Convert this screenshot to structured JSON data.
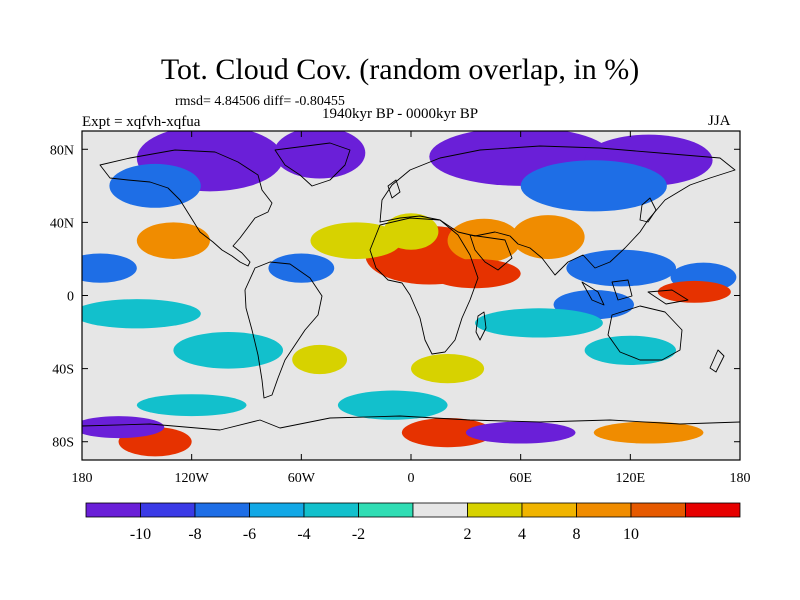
{
  "title": "Tot. Cloud Cov. (random overlap, in %)",
  "stats_line": "rmsd= 4.84506 diff= -0.80455",
  "period_line": "1940kyr BP - 0000kyr BP",
  "expt_label": "Expt = xqfvh-xqfua",
  "season_label": "JJA",
  "map": {
    "projection": "cylindrical equidistant",
    "lon_range": [
      -180,
      180
    ],
    "lat_range": [
      -90,
      90
    ],
    "x_ticks": [
      {
        "value": -180,
        "label": "180"
      },
      {
        "value": -120,
        "label": "120W"
      },
      {
        "value": -60,
        "label": "60W"
      },
      {
        "value": 0,
        "label": "0"
      },
      {
        "value": 60,
        "label": "60E"
      },
      {
        "value": 120,
        "label": "120E"
      },
      {
        "value": 180,
        "label": "180"
      }
    ],
    "y_ticks": [
      {
        "value": 80,
        "label": "80N"
      },
      {
        "value": 40,
        "label": "40N"
      },
      {
        "value": 0,
        "label": "0"
      },
      {
        "value": -40,
        "label": "40S"
      },
      {
        "value": -80,
        "label": "80S"
      }
    ],
    "background_color": "#e6e6e6",
    "anomalies": [
      {
        "lon": -110,
        "lat": 75,
        "rx": 40,
        "ry": 9,
        "color": "#6a1fd8"
      },
      {
        "lon": -50,
        "lat": 78,
        "rx": 25,
        "ry": 7,
        "color": "#6a1fd8"
      },
      {
        "lon": 60,
        "lat": 76,
        "rx": 50,
        "ry": 8,
        "color": "#6a1fd8"
      },
      {
        "lon": 130,
        "lat": 74,
        "rx": 35,
        "ry": 7,
        "color": "#6a1fd8"
      },
      {
        "lon": -140,
        "lat": 60,
        "rx": 25,
        "ry": 6,
        "color": "#1e6ee6"
      },
      {
        "lon": 100,
        "lat": 60,
        "rx": 40,
        "ry": 7,
        "color": "#1e6ee6"
      },
      {
        "lon": -170,
        "lat": 15,
        "rx": 20,
        "ry": 4,
        "color": "#1e6ee6"
      },
      {
        "lon": -60,
        "lat": 15,
        "rx": 18,
        "ry": 4,
        "color": "#1e6ee6"
      },
      {
        "lon": 115,
        "lat": 15,
        "rx": 30,
        "ry": 5,
        "color": "#1e6ee6"
      },
      {
        "lon": 160,
        "lat": 10,
        "rx": 18,
        "ry": 4,
        "color": "#1e6ee6"
      },
      {
        "lon": 100,
        "lat": -5,
        "rx": 22,
        "ry": 4,
        "color": "#1e6ee6"
      },
      {
        "lon": -150,
        "lat": -10,
        "rx": 35,
        "ry": 4,
        "color": "#12c0cc"
      },
      {
        "lon": -100,
        "lat": -30,
        "rx": 30,
        "ry": 5,
        "color": "#12c0cc"
      },
      {
        "lon": 70,
        "lat": -15,
        "rx": 35,
        "ry": 4,
        "color": "#12c0cc"
      },
      {
        "lon": 120,
        "lat": -30,
        "rx": 25,
        "ry": 4,
        "color": "#12c0cc"
      },
      {
        "lon": 10,
        "lat": 22,
        "rx": 35,
        "ry": 8,
        "color": "#e63200"
      },
      {
        "lon": 40,
        "lat": 30,
        "rx": 20,
        "ry": 6,
        "color": "#f08c00"
      },
      {
        "lon": 75,
        "lat": 32,
        "rx": 20,
        "ry": 6,
        "color": "#f08c00"
      },
      {
        "lon": 35,
        "lat": 12,
        "rx": 25,
        "ry": 4,
        "color": "#e63200"
      },
      {
        "lon": 0,
        "lat": 35,
        "rx": 15,
        "ry": 5,
        "color": "#d7d200"
      },
      {
        "lon": -30,
        "lat": 30,
        "rx": 25,
        "ry": 5,
        "color": "#d7d200"
      },
      {
        "lon": 155,
        "lat": 2,
        "rx": 20,
        "ry": 3,
        "color": "#e63200"
      },
      {
        "lon": -130,
        "lat": 30,
        "rx": 20,
        "ry": 5,
        "color": "#f08c00"
      },
      {
        "lon": -140,
        "lat": -80,
        "rx": 20,
        "ry": 4,
        "color": "#e63200"
      },
      {
        "lon": 20,
        "lat": -75,
        "rx": 25,
        "ry": 4,
        "color": "#e63200"
      },
      {
        "lon": 130,
        "lat": -75,
        "rx": 30,
        "ry": 3,
        "color": "#f08c00"
      },
      {
        "lon": -160,
        "lat": -72,
        "rx": 25,
        "ry": 3,
        "color": "#6a1fd8"
      },
      {
        "lon": 60,
        "lat": -75,
        "rx": 30,
        "ry": 3,
        "color": "#6a1fd8"
      },
      {
        "lon": -10,
        "lat": -60,
        "rx": 30,
        "ry": 4,
        "color": "#12c0cc"
      },
      {
        "lon": -120,
        "lat": -60,
        "rx": 30,
        "ry": 3,
        "color": "#12c0cc"
      },
      {
        "lon": 20,
        "lat": -40,
        "rx": 20,
        "ry": 4,
        "color": "#d7d200"
      },
      {
        "lon": -50,
        "lat": -35,
        "rx": 15,
        "ry": 4,
        "color": "#d7d200"
      }
    ]
  },
  "colorbar": {
    "colors": [
      "#6a1fd8",
      "#3a3ae6",
      "#1e6ee6",
      "#12a8e6",
      "#12c0cc",
      "#30ddb4",
      "#e6e6e6",
      "#d7d200",
      "#f0b400",
      "#f08c00",
      "#e65a00",
      "#e60000"
    ],
    "tick_labels": [
      "-10",
      "-8",
      "-6",
      "-4",
      "-2",
      "2",
      "4",
      "8",
      "10"
    ]
  }
}
